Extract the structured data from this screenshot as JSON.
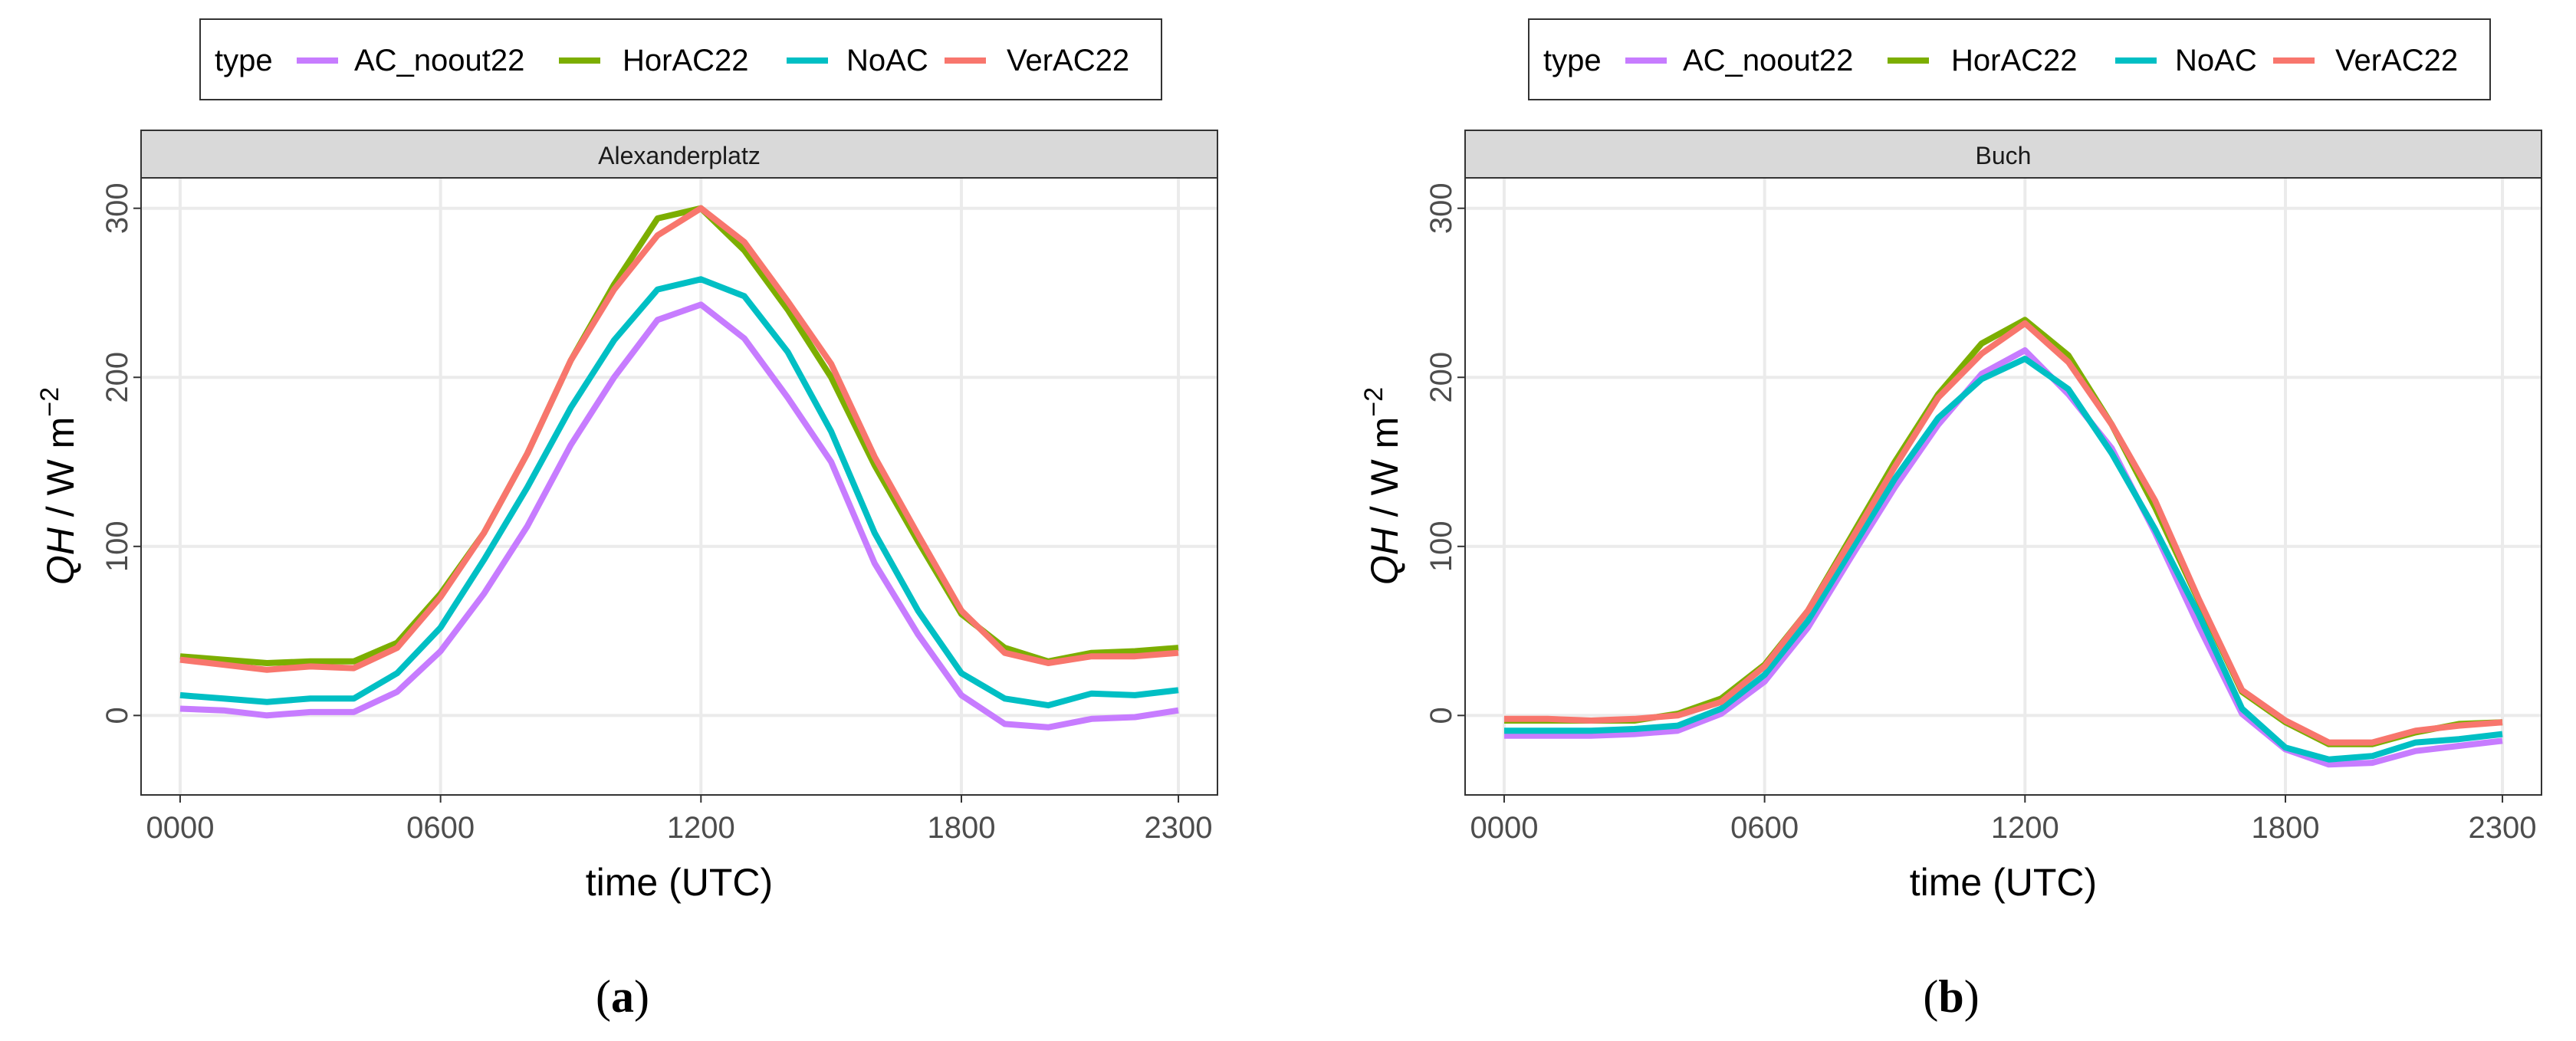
{
  "chart_data": [
    {
      "type": "line",
      "title": "Alexanderplatz",
      "caption": "a",
      "xlabel": "time (UTC)",
      "ylabel_main": "QH",
      "ylabel_units": "/ W m",
      "ylabel_exponent": "−2",
      "xlim": [
        -0.9,
        23.9
      ],
      "ylim": [
        -47,
        318
      ],
      "x_ticks": [
        0,
        6,
        12,
        18,
        23
      ],
      "x_tick_labels": [
        "0000",
        "0600",
        "1200",
        "1800",
        "2300"
      ],
      "y_ticks": [
        0,
        100,
        200,
        300
      ],
      "y_tick_labels": [
        "0",
        "100",
        "200",
        "300"
      ],
      "grid": true,
      "legend_title": "type",
      "legend_position": "top",
      "x": [
        0,
        1,
        2,
        3,
        4,
        5,
        6,
        7,
        8,
        9,
        10,
        11,
        12,
        13,
        14,
        15,
        16,
        17,
        18,
        19,
        20,
        21,
        22,
        23
      ],
      "series": [
        {
          "name": "AC_noout22",
          "color": "#C77CFF",
          "values": [
            4,
            3,
            0,
            2,
            2,
            14,
            38,
            72,
            112,
            160,
            200,
            234,
            243,
            223,
            188,
            150,
            90,
            48,
            12,
            -5,
            -7,
            -2,
            -1,
            3
          ]
        },
        {
          "name": "HorAC22",
          "color": "#7CAE00",
          "values": [
            35,
            33,
            31,
            32,
            32,
            43,
            72,
            108,
            155,
            210,
            255,
            294,
            300,
            275,
            240,
            200,
            148,
            103,
            60,
            40,
            32,
            37,
            38,
            40
          ]
        },
        {
          "name": "NoAC",
          "color": "#00BFC4",
          "values": [
            12,
            10,
            8,
            10,
            10,
            25,
            52,
            92,
            135,
            182,
            222,
            252,
            258,
            248,
            215,
            168,
            108,
            62,
            25,
            10,
            6,
            13,
            12,
            15
          ]
        },
        {
          "name": "VerAC22",
          "color": "#F8766D",
          "values": [
            33,
            30,
            27,
            29,
            28,
            40,
            70,
            108,
            155,
            210,
            252,
            284,
            300,
            280,
            245,
            208,
            153,
            107,
            62,
            37,
            31,
            35,
            35,
            37
          ]
        }
      ]
    },
    {
      "type": "line",
      "title": "Buch",
      "caption": "b",
      "xlabel": "time (UTC)",
      "ylabel_main": "QH",
      "ylabel_units": "/ W m",
      "ylabel_exponent": "−2",
      "xlim": [
        -0.9,
        23.9
      ],
      "ylim": [
        -47,
        318
      ],
      "x_ticks": [
        0,
        6,
        12,
        18,
        23
      ],
      "x_tick_labels": [
        "0000",
        "0600",
        "1200",
        "1800",
        "2300"
      ],
      "y_ticks": [
        0,
        100,
        200,
        300
      ],
      "y_tick_labels": [
        "0",
        "100",
        "200",
        "300"
      ],
      "grid": true,
      "legend_title": "type",
      "legend_position": "top",
      "x": [
        0,
        1,
        2,
        3,
        4,
        5,
        6,
        7,
        8,
        9,
        10,
        11,
        12,
        13,
        14,
        15,
        16,
        17,
        18,
        19,
        20,
        21,
        22,
        23
      ],
      "series": [
        {
          "name": "AC_noout22",
          "color": "#C77CFF",
          "values": [
            -12,
            -12,
            -12,
            -11,
            -9,
            1,
            20,
            52,
            94,
            135,
            172,
            202,
            216,
            190,
            158,
            108,
            53,
            1,
            -20,
            -29,
            -28,
            -21,
            -18,
            -15
          ]
        },
        {
          "name": "HorAC22",
          "color": "#7CAE00",
          "values": [
            -3,
            -3,
            -3,
            -3,
            1,
            10,
            30,
            62,
            106,
            150,
            190,
            220,
            234,
            213,
            172,
            123,
            68,
            14,
            -4,
            -17,
            -17,
            -10,
            -5,
            -4
          ]
        },
        {
          "name": "NoAC",
          "color": "#00BFC4",
          "values": [
            -9,
            -9,
            -9,
            -8,
            -6,
            4,
            24,
            56,
            98,
            140,
            176,
            199,
            211,
            193,
            155,
            110,
            60,
            4,
            -19,
            -26,
            -24,
            -16,
            -14,
            -11
          ]
        },
        {
          "name": "VerAC22",
          "color": "#F8766D",
          "values": [
            -2,
            -2,
            -3,
            -2,
            0,
            8,
            29,
            62,
            104,
            147,
            188,
            214,
            232,
            209,
            172,
            127,
            69,
            15,
            -3,
            -16,
            -16,
            -9,
            -6,
            -4
          ]
        }
      ]
    }
  ]
}
